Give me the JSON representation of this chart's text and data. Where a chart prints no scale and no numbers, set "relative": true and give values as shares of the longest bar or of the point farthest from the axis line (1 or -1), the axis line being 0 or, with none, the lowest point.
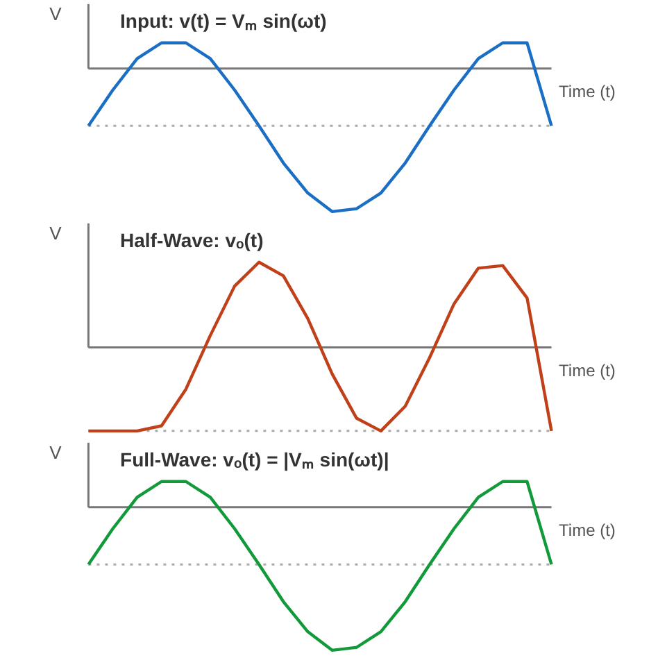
{
  "chart_data": [
    {
      "type": "line",
      "relative": true,
      "title": "Input: v(t) = Vₘ sin(ωt)",
      "xlabel": "Time (t)",
      "ylabel": "V",
      "grid": false,
      "categories": [
        null,
        null,
        null,
        null,
        null,
        null,
        null,
        null,
        null,
        null,
        null,
        null,
        null,
        null,
        null,
        null,
        null,
        null,
        null,
        null
      ],
      "series": [
        {
          "color": "#1a6fc4",
          "values": [
            -0.4,
            -0.15,
            0.07,
            0.18,
            0.18,
            0.07,
            -0.15,
            -0.4,
            -0.66,
            -0.87,
            -1.0,
            -0.98,
            -0.87,
            -0.66,
            -0.4,
            -0.15,
            0.07,
            0.18,
            0.18,
            -0.4
          ]
        }
      ],
      "ref_lines": [
        {
          "axis": "y",
          "value": -0.4,
          "color": "#aaaaaa",
          "line_style": "dotted"
        }
      ]
    },
    {
      "type": "line",
      "relative": true,
      "title": "Half-Wave: vₒ(t)",
      "xlabel": "Time (t)",
      "ylabel": "V",
      "grid": false,
      "categories": [
        null,
        null,
        null,
        null,
        null,
        null,
        null,
        null,
        null,
        null,
        null,
        null,
        null,
        null,
        null,
        null,
        null,
        null,
        null,
        null
      ],
      "series": [
        {
          "color": "#c0401a",
          "values": [
            -0.98,
            -0.98,
            -0.98,
            -0.92,
            -0.49,
            0.14,
            0.72,
            1.0,
            0.84,
            0.34,
            -0.31,
            -0.83,
            -0.98,
            -0.69,
            -0.12,
            0.51,
            0.93,
            0.96,
            0.58,
            -0.98
          ]
        }
      ],
      "ref_lines": [
        {
          "axis": "y",
          "value": -0.98,
          "color": "#aaaaaa",
          "line_style": "dotted"
        }
      ]
    },
    {
      "type": "line",
      "relative": true,
      "title": "Full-Wave: vₒ(t) = |Vₘ sin(ωt)|",
      "xlabel": "Time (t)",
      "ylabel": "V",
      "grid": false,
      "categories": [
        null,
        null,
        null,
        null,
        null,
        null,
        null,
        null,
        null,
        null,
        null,
        null,
        null,
        null,
        null,
        null,
        null,
        null,
        null,
        null
      ],
      "series": [
        {
          "color": "#12993a",
          "values": [
            -0.4,
            -0.15,
            0.07,
            0.18,
            0.18,
            0.07,
            -0.15,
            -0.4,
            -0.66,
            -0.87,
            -1.0,
            -0.98,
            -0.87,
            -0.66,
            -0.4,
            -0.15,
            0.07,
            0.18,
            0.18,
            -0.4
          ]
        }
      ],
      "ref_lines": [
        {
          "axis": "y",
          "value": -0.4,
          "color": "#aaaaaa",
          "line_style": "dotted"
        }
      ]
    }
  ]
}
